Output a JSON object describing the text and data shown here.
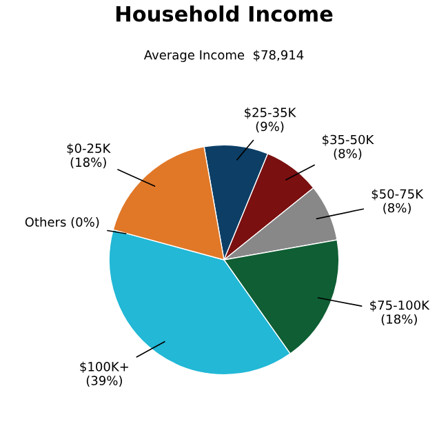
{
  "chart_data": {
    "type": "pie",
    "title": "Household Income",
    "subtitle": "Average Income  $78,914",
    "categories": [
      "$25-35K",
      "$35-50K",
      "$50-75K",
      "$75-100K",
      "$100K+",
      "Others",
      "$0-25K"
    ],
    "values": [
      9,
      8,
      8,
      18,
      39,
      0,
      18
    ],
    "value_labels": [
      "(9%)",
      "(8%)",
      "(8%)",
      "(18%)",
      "(39%)",
      "(0%)",
      "(18%)"
    ],
    "colors": [
      "#0d3f66",
      "#7a1010",
      "#888888",
      "#0f5e34",
      "#22b8d6",
      "#9e9e9e",
      "#e07828"
    ]
  }
}
